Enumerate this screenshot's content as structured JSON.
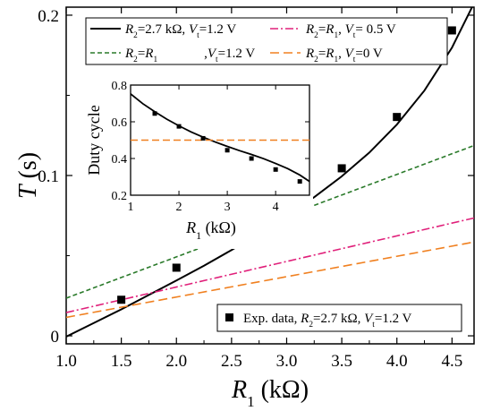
{
  "chart_data": [
    {
      "type": "line",
      "xlabel": {
        "var": "R",
        "sub": "1",
        "unit": " (kΩ)"
      },
      "ylabel": {
        "var": "T",
        "unit": " (s)"
      },
      "xlim": [
        1.0,
        4.7
      ],
      "ylim": [
        -0.005,
        0.205
      ],
      "xticks": [
        1.0,
        1.5,
        2.0,
        2.5,
        3.0,
        3.5,
        4.0,
        4.5
      ],
      "xtick_labels": [
        "1.0",
        "1.5",
        "2.0",
        "2.5",
        "3.0",
        "3.5",
        "4.0",
        "4.5"
      ],
      "yticks": [
        0,
        0.1,
        0.2
      ],
      "ytick_labels": [
        "0",
        "0.1",
        "0.2"
      ],
      "series": [
        {
          "name": "R2=2.7 kΩ, Vt=1.2 V",
          "legend_parts": [
            {
              "t": "R",
              "i": true
            },
            {
              "t": "2",
              "sub": true
            },
            {
              "t": "=2.7 kΩ, "
            },
            {
              "t": "V",
              "i": true
            },
            {
              "t": "t",
              "sub": true
            },
            {
              "t": "=1.2 V"
            }
          ],
          "color": "#000000",
          "dash": "",
          "x": [
            1.0,
            1.25,
            1.5,
            1.75,
            2.0,
            2.25,
            2.5,
            2.75,
            3.0,
            3.25,
            3.5,
            3.75,
            4.0,
            4.25,
            4.5,
            4.7
          ],
          "y": [
            -0.0005,
            0.008,
            0.0165,
            0.0255,
            0.0345,
            0.0437,
            0.0535,
            0.0638,
            0.0747,
            0.0865,
            0.0995,
            0.1143,
            0.1318,
            0.153,
            0.1798,
            0.2075
          ]
        },
        {
          "name": "R2=R1, Vt=1.2 V",
          "legend_parts": [
            {
              "t": "R",
              "i": true
            },
            {
              "t": "2",
              "sub": true
            },
            {
              "t": "="
            },
            {
              "t": "R",
              "i": true
            },
            {
              "t": "1",
              "sub": true
            },
            {
              "t": ",",
              "gap": 1
            },
            {
              "t": "V",
              "i": true
            },
            {
              "t": "t",
              "sub": true
            },
            {
              "t": "=1.2 V"
            }
          ],
          "color": "#2a7a2a",
          "dash": "5,3",
          "x": [
            1.0,
            4.7
          ],
          "y": [
            0.0235,
            0.1187
          ]
        },
        {
          "name": "R2=R1, Vt=0.5 V",
          "legend_parts": [
            {
              "t": "R",
              "i": true
            },
            {
              "t": "2",
              "sub": true
            },
            {
              "t": "="
            },
            {
              "t": "R",
              "i": true
            },
            {
              "t": "1",
              "sub": true
            },
            {
              "t": ", "
            },
            {
              "t": "V",
              "i": true
            },
            {
              "t": "t",
              "sub": true
            },
            {
              "t": "= 0.5 V"
            }
          ],
          "color": "#e0207a",
          "dash": "9,3,2,3",
          "x": [
            1.0,
            4.7
          ],
          "y": [
            0.0145,
            0.0735
          ]
        },
        {
          "name": "R2=R1, Vt=0 V",
          "legend_parts": [
            {
              "t": "R",
              "i": true
            },
            {
              "t": "2",
              "sub": true
            },
            {
              "t": "="
            },
            {
              "t": "R",
              "i": true
            },
            {
              "t": "1",
              "sub": true
            },
            {
              "t": ", "
            },
            {
              "t": "V",
              "i": true
            },
            {
              "t": "t",
              "sub": true
            },
            {
              "t": "=0 V"
            }
          ],
          "color": "#f08020",
          "dash": "10,5",
          "x": [
            1.0,
            4.7
          ],
          "y": [
            0.0115,
            0.0585
          ]
        }
      ],
      "scatter": {
        "name": "Exp. data, R2=2.7 kΩ, Vt=1.2 V",
        "legend_parts": [
          {
            "t": "Exp. data, "
          },
          {
            "t": "R",
            "i": true
          },
          {
            "t": "2",
            "sub": true
          },
          {
            "t": "=2.7 kΩ, "
          },
          {
            "t": "V",
            "i": true
          },
          {
            "t": "t",
            "sub": true
          },
          {
            "t": "=1.2 V"
          }
        ],
        "color": "#000000",
        "x": [
          1.5,
          2.0,
          2.5,
          3.0,
          3.5,
          4.0,
          4.5
        ],
        "y": [
          0.0225,
          0.0425,
          0.0635,
          0.0825,
          0.1045,
          0.1365,
          0.1905
        ]
      }
    },
    {
      "type": "line",
      "inset": true,
      "xlabel": {
        "var": "R",
        "sub": "1",
        "unit": " (kΩ)"
      },
      "ylabel": "Duty cycle",
      "xlim": [
        1,
        4.7
      ],
      "ylim": [
        0.2,
        0.8
      ],
      "xticks": [
        1,
        2,
        3,
        4
      ],
      "xtick_labels": [
        "1",
        "2",
        "3",
        "4"
      ],
      "yticks": [
        0.2,
        0.4,
        0.6,
        0.8
      ],
      "ytick_labels": [
        "0.2",
        "0.4",
        "0.6",
        "0.8"
      ],
      "series": [
        {
          "color": "#000000",
          "dash": "",
          "x": [
            1.0,
            1.25,
            1.5,
            1.75,
            2.0,
            2.25,
            2.5,
            2.75,
            3.0,
            3.25,
            3.5,
            3.75,
            4.0,
            4.25,
            4.5,
            4.7
          ],
          "y": [
            0.752,
            0.699,
            0.655,
            0.614,
            0.578,
            0.545,
            0.516,
            0.49,
            0.466,
            0.443,
            0.422,
            0.399,
            0.373,
            0.345,
            0.31,
            0.275
          ]
        },
        {
          "color": "#f08020",
          "dash": "8,4",
          "x": [
            1.0,
            4.7
          ],
          "y": [
            0.5,
            0.5
          ]
        }
      ],
      "scatter": {
        "color": "#000000",
        "x": [
          1.5,
          2.0,
          2.5,
          3.0,
          3.5,
          4.0,
          4.5
        ],
        "y": [
          0.645,
          0.575,
          0.51,
          0.445,
          0.4,
          0.34,
          0.275
        ]
      }
    }
  ]
}
